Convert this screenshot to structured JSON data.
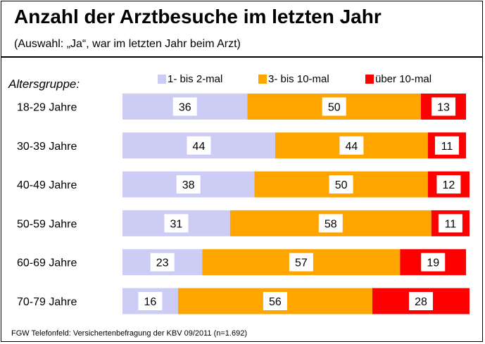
{
  "chart_data": {
    "type": "bar",
    "orientation": "horizontal",
    "stacked": true,
    "title": "Anzahl der Arztbesuche im letzten Jahr",
    "subtitle": "(Auswahl: „Ja“, war im letzten Jahr beim Arzt)",
    "category_header": "Altersgruppe:",
    "categories": [
      "18-29 Jahre",
      "30-39 Jahre",
      "40-49 Jahre",
      "50-59 Jahre",
      "60-69 Jahre",
      "70-79 Jahre"
    ],
    "series": [
      {
        "name": "1- bis 2-mal",
        "color": "#ccccf5",
        "values": [
          36,
          44,
          38,
          31,
          23,
          16
        ]
      },
      {
        "name": "3- bis 10-mal",
        "color": "#ffa500",
        "values": [
          50,
          44,
          50,
          58,
          57,
          56
        ]
      },
      {
        "name": "über 10-mal",
        "color": "#ff0000",
        "values": [
          13,
          11,
          12,
          11,
          19,
          28
        ]
      }
    ],
    "units": "%",
    "xlim": [
      0,
      100
    ],
    "footer": "FGW Telefonfeld: Versichertenbefragung der KBV 09/2011 (n=1.692)"
  }
}
